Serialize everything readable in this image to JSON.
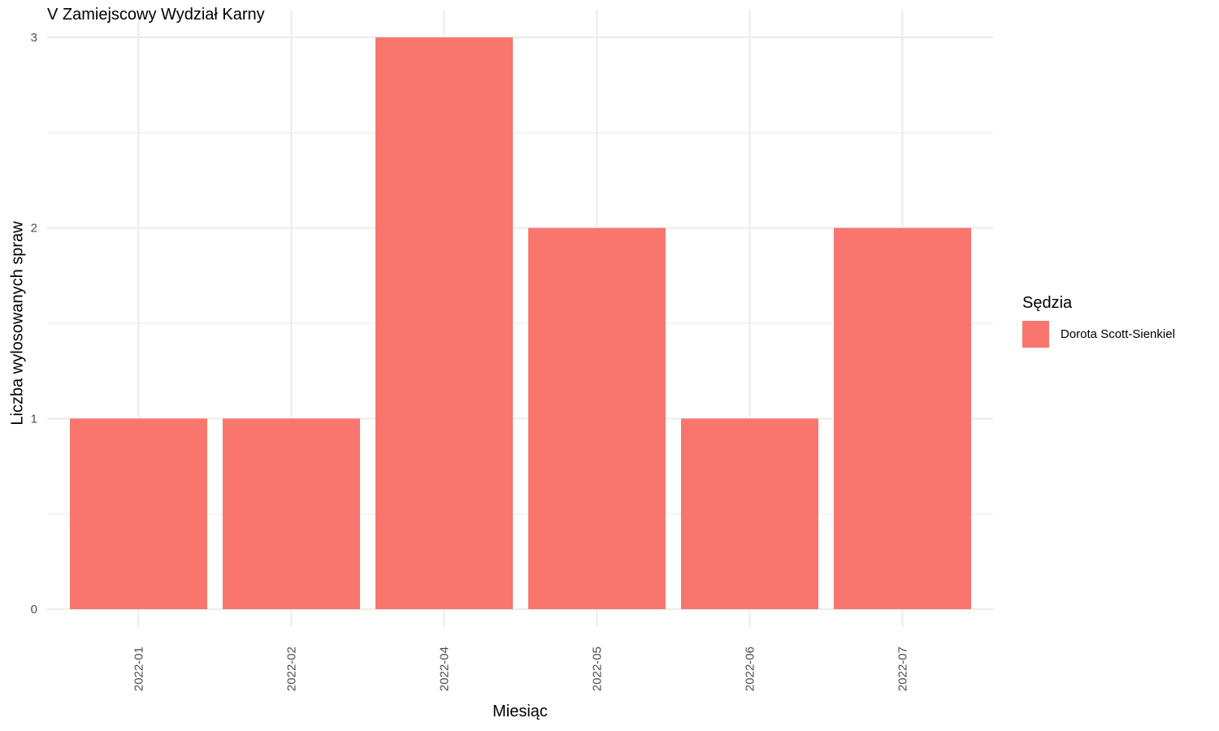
{
  "chart_data": {
    "type": "bar",
    "title": "V Zamiejscowy Wydział Karny",
    "xlabel": "Miesiąc",
    "ylabel": "Liczba wylosowanych spraw",
    "categories": [
      "2022-01",
      "2022-02",
      "2022-04",
      "2022-05",
      "2022-06",
      "2022-07"
    ],
    "series": [
      {
        "name": "Dorota Scott-Sienkiel",
        "values": [
          1,
          1,
          3,
          2,
          1,
          2
        ],
        "color": "#F8766D"
      }
    ],
    "ylim": [
      0,
      3
    ],
    "yticks": [
      0,
      1,
      2,
      3
    ],
    "grid": true,
    "legend": {
      "title": "Sędzia",
      "placement": "right"
    }
  }
}
